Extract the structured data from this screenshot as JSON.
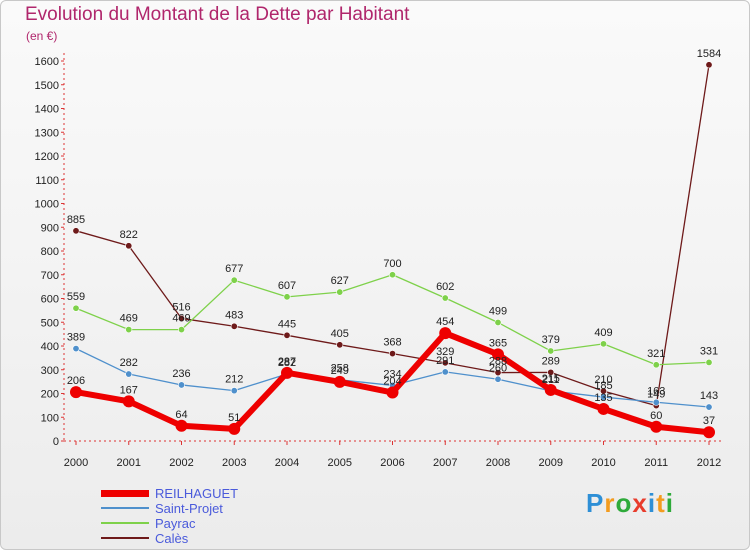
{
  "title": "Evolution du Montant de la Dette par Habitant",
  "unit": "(en €)",
  "brand": {
    "text": "Proxiti",
    "letter_colors": [
      "#2e8fd6",
      "#f39c1f",
      "#2eaa3a",
      "#e83c2c",
      "#2e8fd6",
      "#f39c1f",
      "#2eaa3a"
    ]
  },
  "chart_data": {
    "type": "line",
    "title": "Evolution du Montant de la Dette par Habitant",
    "ylabel": "(en €)",
    "xlabel": "",
    "x": [
      "2000",
      "2001",
      "2002",
      "2003",
      "2004",
      "2005",
      "2006",
      "2007",
      "2008",
      "2009",
      "2010",
      "2011",
      "2012"
    ],
    "ylim": [
      0,
      1600
    ],
    "yticks": [
      0,
      100,
      200,
      300,
      400,
      500,
      600,
      700,
      800,
      900,
      1000,
      1100,
      1200,
      1300,
      1400,
      1500,
      1600
    ],
    "grid": false,
    "legend_position": "bottom-left",
    "series": [
      {
        "name": "REILHAGUET",
        "color": "#ee0000",
        "values": [
          206,
          167,
          64,
          51,
          287,
          249,
          204,
          454,
          365,
          215,
          135,
          60,
          37
        ]
      },
      {
        "name": "Saint-Projet",
        "color": "#4f90cc",
        "values": [
          389,
          282,
          236,
          212,
          282,
          258,
          234,
          291,
          260,
          211,
          185,
          163,
          143
        ]
      },
      {
        "name": "Payrac",
        "color": "#7ed14a",
        "values": [
          559,
          469,
          469,
          677,
          607,
          627,
          700,
          602,
          499,
          379,
          409,
          321,
          331
        ]
      },
      {
        "name": "Calès",
        "color": "#6e1a1a",
        "values": [
          885,
          822,
          516,
          483,
          445,
          405,
          368,
          329,
          288,
          289,
          210,
          149,
          1584
        ]
      }
    ]
  }
}
